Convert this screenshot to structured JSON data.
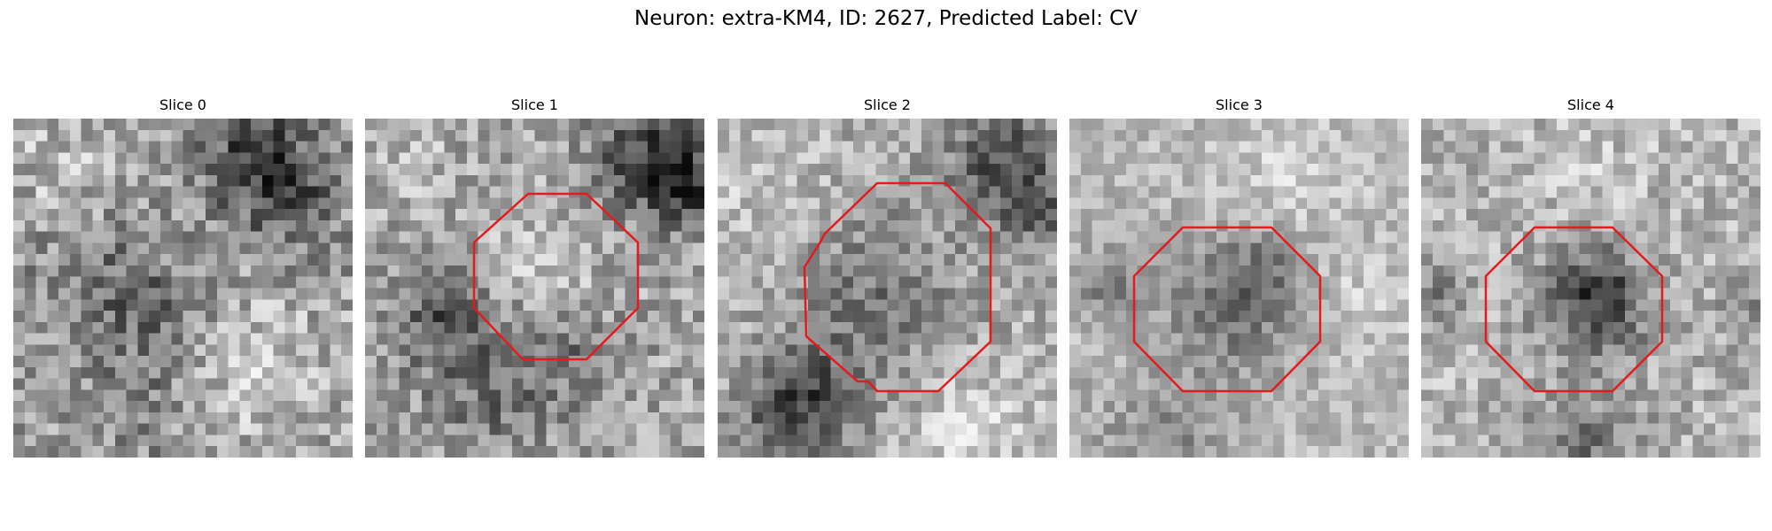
{
  "figure": {
    "title": "Neuron: extra-KM4, ID: 2627, Predicted Label: CV"
  },
  "colors": {
    "contour": "#e41a1c",
    "background": "#ffffff",
    "colormap": "grayscale"
  },
  "slices": [
    {
      "title": "Slice 0",
      "has_contour": false
    },
    {
      "title": "Slice 1",
      "has_contour": true
    },
    {
      "title": "Slice 2",
      "has_contour": true
    },
    {
      "title": "Slice 3",
      "has_contour": true
    },
    {
      "title": "Slice 4",
      "has_contour": true
    }
  ]
}
